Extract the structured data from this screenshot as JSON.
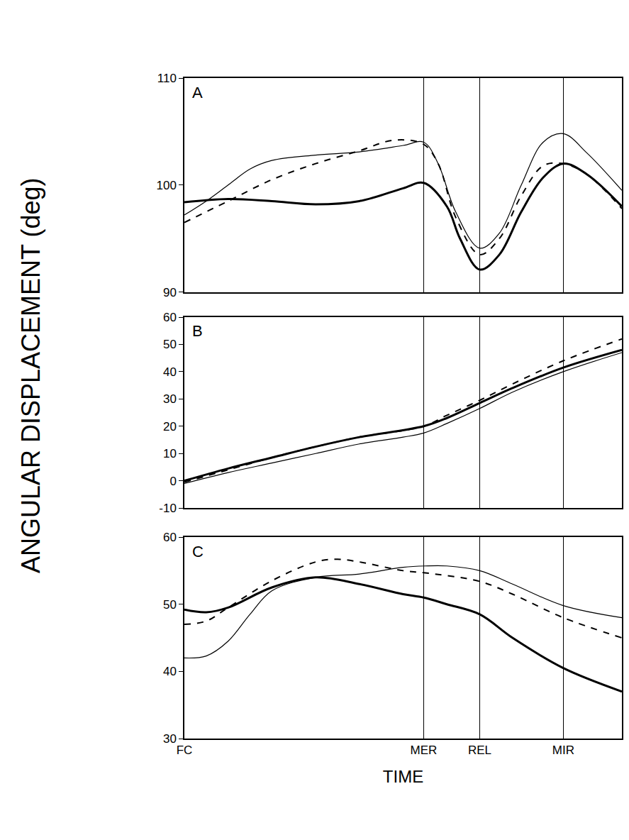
{
  "ylabel": "ANGULAR DISPLACEMENT (deg)",
  "chart_data": [
    {
      "type": "line",
      "title": "A",
      "grid": true,
      "tick_labels": "y",
      "xlim": [
        0,
        100
      ],
      "xticks": [
        0,
        54.7,
        67.5,
        86.6
      ],
      "ylim": [
        90,
        110
      ],
      "yticks": [
        90,
        100,
        110
      ],
      "series": [
        {
          "color": "#000000",
          "line_style": "thick",
          "x": [
            0,
            10,
            20,
            30,
            40,
            50,
            54.7,
            60,
            63,
            67.5,
            72,
            77,
            82,
            86.6,
            92,
            100
          ],
          "values": [
            98.4,
            98.7,
            98.5,
            98.2,
            98.5,
            99.7,
            100.2,
            98,
            95,
            92.1,
            93.5,
            97.5,
            100.7,
            102,
            101,
            98
          ]
        },
        {
          "color": "#000000",
          "line_style": "thin",
          "x": [
            0,
            5,
            10,
            15,
            20,
            30,
            40,
            50,
            54.7,
            58,
            62,
            67.5,
            72,
            77,
            82,
            86.6,
            92,
            100
          ],
          "values": [
            97.2,
            98.5,
            100,
            101.5,
            102.3,
            102.8,
            103.1,
            103.7,
            104,
            102,
            97.5,
            94.1,
            95.5,
            100,
            104,
            104.8,
            103,
            99.5
          ]
        },
        {
          "color": "#000000",
          "line_style": "dash",
          "x": [
            0,
            10,
            20,
            30,
            40,
            48,
            54.7,
            58,
            62,
            67.5,
            72,
            77,
            82,
            86.6,
            92,
            100
          ],
          "values": [
            96.5,
            98.5,
            100.5,
            102,
            103.2,
            104.2,
            103.8,
            102,
            97,
            93.5,
            95,
            99,
            101.8,
            102,
            101,
            97.8
          ]
        }
      ]
    },
    {
      "type": "line",
      "title": "B",
      "grid": true,
      "tick_labels": "y",
      "xlim": [
        0,
        100
      ],
      "xticks": [
        0,
        54.7,
        67.5,
        86.6
      ],
      "ylim": [
        -10,
        60
      ],
      "yticks": [
        -10,
        0,
        10,
        20,
        30,
        40,
        50,
        60
      ],
      "series": [
        {
          "color": "#000000",
          "line_style": "thick",
          "x": [
            0,
            10,
            20,
            30,
            40,
            54.7,
            60,
            67.5,
            75,
            86.6,
            100
          ],
          "values": [
            0,
            4.5,
            8.5,
            12.5,
            16,
            20,
            23,
            28.5,
            34,
            41.5,
            48
          ]
        },
        {
          "color": "#000000",
          "line_style": "thin",
          "x": [
            0,
            10,
            20,
            30,
            40,
            50,
            54.7,
            60,
            67.5,
            75,
            86.6,
            100
          ],
          "values": [
            -1,
            3,
            6.5,
            10,
            13.5,
            16,
            17.5,
            21,
            26.5,
            32.5,
            40,
            47
          ]
        },
        {
          "color": "#000000",
          "line_style": "dash",
          "x": [
            0,
            10,
            20,
            30,
            40,
            54.7,
            60,
            67.5,
            75,
            86.6,
            100
          ],
          "values": [
            -0.5,
            4,
            8.5,
            12.5,
            16,
            20,
            24,
            29.5,
            35.5,
            44,
            52
          ]
        }
      ]
    },
    {
      "type": "line",
      "title": "C",
      "grid": true,
      "xlabel": "TIME",
      "xlim": [
        0,
        100
      ],
      "xticks": [
        {
          "value": 0,
          "label": "FC"
        },
        {
          "value": 54.7,
          "label": "MER"
        },
        {
          "value": 67.5,
          "label": "REL"
        },
        {
          "value": 86.6,
          "label": "MIR"
        }
      ],
      "ylim": [
        30,
        60
      ],
      "yticks": [
        30,
        40,
        50,
        60
      ],
      "series": [
        {
          "color": "#000000",
          "line_style": "thick",
          "x": [
            0,
            5,
            10,
            20,
            30,
            40,
            50,
            54.7,
            60,
            67.5,
            75,
            86.6,
            100
          ],
          "values": [
            49.2,
            48.8,
            49.5,
            52.5,
            54,
            53,
            51.5,
            51,
            50,
            48.5,
            45,
            40.5,
            37
          ]
        },
        {
          "color": "#000000",
          "line_style": "thin",
          "x": [
            0,
            5,
            10,
            15,
            20,
            30,
            40,
            50,
            55,
            60,
            67.5,
            75,
            86.6,
            100
          ],
          "values": [
            42,
            42.3,
            44.5,
            48.5,
            52,
            54,
            54.5,
            55.5,
            55.7,
            55.7,
            55,
            53,
            49.8,
            48
          ]
        },
        {
          "color": "#000000",
          "line_style": "dash",
          "x": [
            0,
            5,
            10,
            20,
            30,
            35,
            40,
            50,
            54.7,
            67.5,
            75,
            86.6,
            100
          ],
          "values": [
            47,
            47.5,
            49.5,
            53.5,
            56.3,
            56.7,
            56.3,
            55,
            54.7,
            53.4,
            51.5,
            48,
            45
          ]
        }
      ]
    }
  ]
}
